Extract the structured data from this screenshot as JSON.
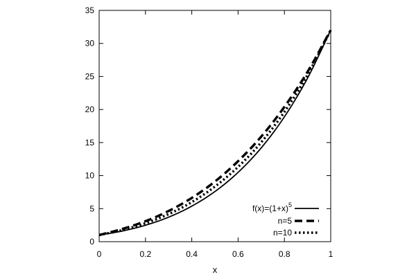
{
  "chart_data": {
    "type": "line",
    "xlabel": "x",
    "ylabel": "",
    "xlim": [
      0,
      1
    ],
    "ylim": [
      0,
      35
    ],
    "x_ticks": [
      "0",
      "0.2",
      "0.4",
      "0.6",
      "0.8",
      "1"
    ],
    "y_ticks": [
      "0",
      "5",
      "10",
      "15",
      "20",
      "25",
      "30",
      "35"
    ],
    "grid": false,
    "legend_position": "bottom-right",
    "series": [
      {
        "name": "f(x)=(1+x)^5",
        "label_base": "f(x)=(1+x)",
        "label_superscript": "5",
        "style": "solid",
        "x": [
          0,
          0.1,
          0.2,
          0.3,
          0.4,
          0.5,
          0.6,
          0.7,
          0.8,
          0.9,
          1.0
        ],
        "y": [
          1.0,
          1.61,
          2.49,
          3.71,
          5.38,
          7.59,
          10.49,
          14.2,
          18.9,
          24.76,
          32.0
        ]
      },
      {
        "name": "n=5",
        "style": "dashed",
        "x": [
          0,
          0.1,
          0.2,
          0.3,
          0.4,
          0.5,
          0.6,
          0.7,
          0.8,
          0.9,
          1.0
        ],
        "y": [
          1.0,
          1.92,
          3.1,
          4.64,
          6.62,
          9.1,
          12.18,
          15.9,
          20.4,
          25.7,
          32.0
        ]
      },
      {
        "name": "n=10",
        "style": "dotted",
        "x": [
          0,
          0.1,
          0.2,
          0.3,
          0.4,
          0.5,
          0.6,
          0.7,
          0.8,
          0.9,
          1.0
        ],
        "y": [
          1.0,
          1.76,
          2.8,
          4.17,
          5.99,
          8.34,
          11.32,
          15.04,
          19.64,
          25.24,
          32.0
        ]
      }
    ]
  }
}
